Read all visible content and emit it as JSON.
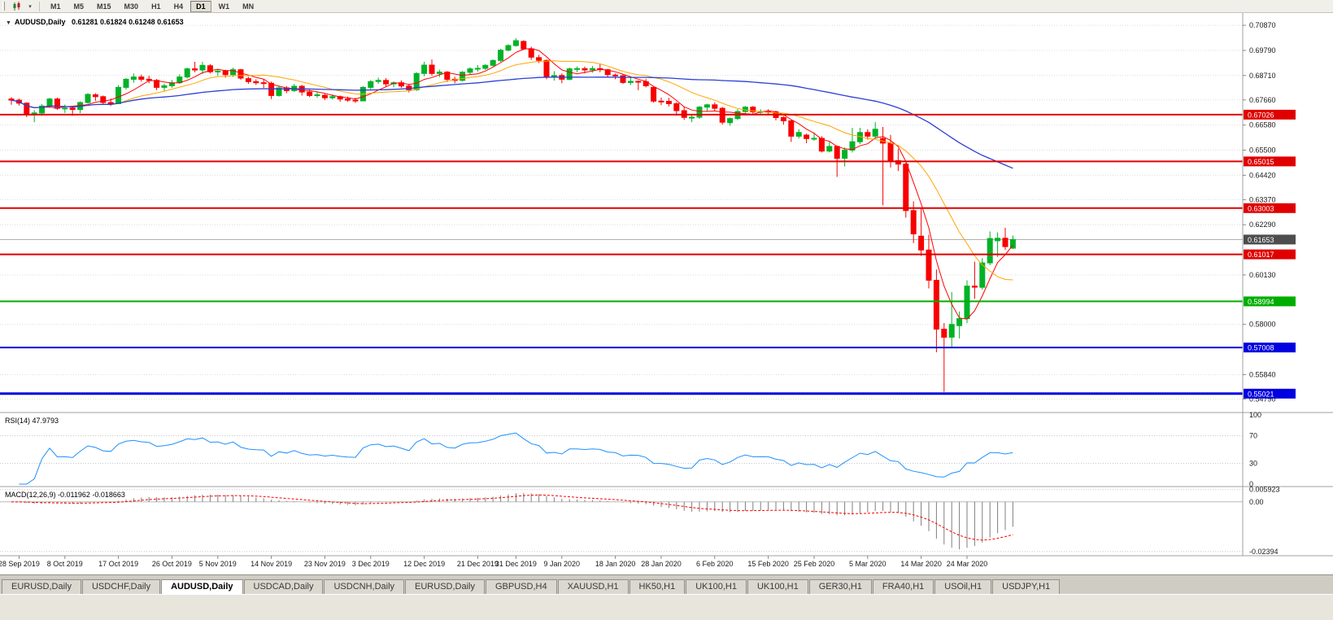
{
  "toolbar": {
    "timeframe_buttons": [
      "M1",
      "M5",
      "M15",
      "M30",
      "H1",
      "H4",
      "D1",
      "W1",
      "MN"
    ],
    "active_timeframe": "D1"
  },
  "chart_header": {
    "symbol_title": "AUDUSD,Daily",
    "ohlc_text": "0.61281 0.61824 0.61248 0.61653"
  },
  "bottom_tabs": {
    "active_index": 2,
    "tabs": [
      "EURUSD,Daily",
      "USDCHF,Daily",
      "AUDUSD,Daily",
      "USDCAD,Daily",
      "USDCNH,Daily",
      "EURUSD,Daily",
      "GBPUSD,H4",
      "XAUUSD,H1",
      "HK50,H1",
      "UK100,H1",
      "UK100,H1",
      "GER30,H1",
      "FRA40,H1",
      "USOil,H1",
      "USDJPY,H1"
    ]
  },
  "chart_data": {
    "type": "candlestick",
    "title": "AUDUSD,Daily",
    "view_range": [
      0.5428,
      0.7098
    ],
    "price_axis_labels": [
      "0.70870",
      "0.69790",
      "0.68710",
      "0.67660",
      "0.66580",
      "0.65500",
      "0.64420",
      "0.63370",
      "0.62290",
      "0.60130",
      "0.58000",
      "0.55840",
      "0.54790"
    ],
    "date_axis_labels": [
      "28 Sep 2019",
      "8 Oct 2019",
      "17 Oct 2019",
      "26 Oct 2019",
      "5 Nov 2019",
      "14 Nov 2019",
      "23 Nov 2019",
      "3 Dec 2019",
      "12 Dec 2019",
      "21 Dec 2019",
      "31 Dec 2019",
      "9 Jan 2020",
      "18 Jan 2020",
      "28 Jan 2020",
      "6 Feb 2020",
      "15 Feb 2020",
      "25 Feb 2020",
      "5 Mar 2020",
      "14 Mar 2020",
      "24 Mar 2020"
    ],
    "current_price": {
      "label": "0.61653"
    },
    "horizontal_lines": [
      {
        "price": 0.67026,
        "label": "0.67026",
        "color": "#E00000",
        "width": 2
      },
      {
        "price": 0.65015,
        "label": "0.65015",
        "color": "#E00000",
        "width": 2
      },
      {
        "price": 0.63003,
        "label": "0.63003",
        "color": "#E00000",
        "width": 2
      },
      {
        "price": 0.61017,
        "label": "0.61017",
        "color": "#E00000",
        "width": 2
      },
      {
        "price": 0.58994,
        "label": "0.58994",
        "color": "#00AE00",
        "width": 2
      },
      {
        "price": 0.57008,
        "label": "0.57008",
        "color": "#0000E0",
        "width": 2
      },
      {
        "price": 0.55021,
        "label": "0.55021",
        "color": "#0000E0",
        "width": 3
      }
    ],
    "colors": {
      "bull": "#00B226",
      "bear": "#F80000",
      "ma_fast": "#FF0000",
      "ma_mid": "#FFA500",
      "ma_slow": "#2B3FD6",
      "rsi_line": "#1E90FF",
      "macd_hist": "#7F7F7F",
      "macd_signal": "#FF0000",
      "grid": "#DCDCDC",
      "bid_line": "#A8A8A8",
      "bid_badge": "#4D4D4D"
    },
    "rsi": {
      "label": "RSI(14) 47.9793",
      "value": 47.9793,
      "levels": [
        70,
        30
      ],
      "scale_labels": [
        "100",
        "70",
        "30",
        "0"
      ]
    },
    "macd": {
      "label": "MACD(12,26,9) -0.011962 -0.018663",
      "main": -0.011962,
      "signal": -0.018663,
      "scale_labels": [
        "0.005923",
        "0.00",
        "-0.02394"
      ]
    },
    "candles": [
      [
        "2019-09-27",
        0.677,
        0.6778,
        0.6745,
        0.6765
      ],
      [
        "2019-09-30",
        0.6765,
        0.6772,
        0.6742,
        0.6752
      ],
      [
        "2019-10-01",
        0.6752,
        0.6756,
        0.6692,
        0.6705
      ],
      [
        "2019-10-02",
        0.6705,
        0.6722,
        0.667,
        0.671
      ],
      [
        "2019-10-03",
        0.671,
        0.6748,
        0.6698,
        0.674
      ],
      [
        "2019-10-04",
        0.674,
        0.6775,
        0.6732,
        0.677
      ],
      [
        "2019-10-07",
        0.677,
        0.6776,
        0.6723,
        0.673
      ],
      [
        "2019-10-08",
        0.673,
        0.6746,
        0.671,
        0.6731
      ],
      [
        "2019-10-09",
        0.6731,
        0.674,
        0.6698,
        0.6725
      ],
      [
        "2019-10-10",
        0.6725,
        0.676,
        0.6709,
        0.6755
      ],
      [
        "2019-10-11",
        0.6755,
        0.6795,
        0.675,
        0.679
      ],
      [
        "2019-10-14",
        0.6788,
        0.6795,
        0.6762,
        0.678
      ],
      [
        "2019-10-15",
        0.678,
        0.6785,
        0.6745,
        0.6755
      ],
      [
        "2019-10-16",
        0.6755,
        0.6772,
        0.674,
        0.675
      ],
      [
        "2019-10-17",
        0.675,
        0.683,
        0.6748,
        0.682
      ],
      [
        "2019-10-18",
        0.682,
        0.686,
        0.681,
        0.6855
      ],
      [
        "2019-10-21",
        0.6855,
        0.688,
        0.684,
        0.6865
      ],
      [
        "2019-10-22",
        0.6865,
        0.6875,
        0.6845,
        0.6855
      ],
      [
        "2019-10-23",
        0.6855,
        0.687,
        0.6838,
        0.685
      ],
      [
        "2019-10-24",
        0.685,
        0.6856,
        0.6808,
        0.682
      ],
      [
        "2019-10-25",
        0.682,
        0.6836,
        0.6805,
        0.6827
      ],
      [
        "2019-10-28",
        0.6827,
        0.6852,
        0.6818,
        0.684
      ],
      [
        "2019-10-29",
        0.684,
        0.6876,
        0.6835,
        0.6865
      ],
      [
        "2019-10-30",
        0.6865,
        0.6905,
        0.6858,
        0.69
      ],
      [
        "2019-10-31",
        0.69,
        0.693,
        0.6885,
        0.6895
      ],
      [
        "2019-11-01",
        0.6895,
        0.693,
        0.6878,
        0.6915
      ],
      [
        "2019-11-04",
        0.6913,
        0.692,
        0.688,
        0.6887
      ],
      [
        "2019-11-05",
        0.6887,
        0.69,
        0.687,
        0.689
      ],
      [
        "2019-11-06",
        0.689,
        0.6896,
        0.6862,
        0.6875
      ],
      [
        "2019-11-07",
        0.6875,
        0.6905,
        0.6865,
        0.6896
      ],
      [
        "2019-11-08",
        0.6896,
        0.69,
        0.6853,
        0.686
      ],
      [
        "2019-11-11",
        0.6858,
        0.6866,
        0.6835,
        0.6845
      ],
      [
        "2019-11-12",
        0.6845,
        0.6855,
        0.683,
        0.684
      ],
      [
        "2019-11-13",
        0.684,
        0.6855,
        0.6818,
        0.6838
      ],
      [
        "2019-11-14",
        0.6838,
        0.6845,
        0.677,
        0.6785
      ],
      [
        "2019-11-15",
        0.6785,
        0.6825,
        0.678,
        0.6818
      ],
      [
        "2019-11-18",
        0.6818,
        0.6826,
        0.6795,
        0.6806
      ],
      [
        "2019-11-19",
        0.6806,
        0.6835,
        0.68,
        0.6825
      ],
      [
        "2019-11-20",
        0.6825,
        0.6831,
        0.6785,
        0.68
      ],
      [
        "2019-11-21",
        0.68,
        0.681,
        0.6778,
        0.6785
      ],
      [
        "2019-11-22",
        0.6785,
        0.68,
        0.6775,
        0.6788
      ],
      [
        "2019-11-25",
        0.6786,
        0.6792,
        0.6765,
        0.6775
      ],
      [
        "2019-11-26",
        0.6775,
        0.679,
        0.6768,
        0.678
      ],
      [
        "2019-11-27",
        0.678,
        0.6785,
        0.6758,
        0.677
      ],
      [
        "2019-11-28",
        0.677,
        0.678,
        0.6758,
        0.6765
      ],
      [
        "2019-11-29",
        0.6765,
        0.6775,
        0.6753,
        0.6762
      ],
      [
        "2019-12-02",
        0.6762,
        0.6825,
        0.676,
        0.682
      ],
      [
        "2019-12-03",
        0.682,
        0.6852,
        0.681,
        0.6845
      ],
      [
        "2019-12-04",
        0.6845,
        0.6862,
        0.6835,
        0.685
      ],
      [
        "2019-12-05",
        0.685,
        0.686,
        0.6823,
        0.6835
      ],
      [
        "2019-12-06",
        0.6835,
        0.6846,
        0.682,
        0.684
      ],
      [
        "2019-12-09",
        0.684,
        0.685,
        0.6818,
        0.6826
      ],
      [
        "2019-12-10",
        0.6826,
        0.6835,
        0.6798,
        0.681
      ],
      [
        "2019-12-11",
        0.681,
        0.6885,
        0.6805,
        0.688
      ],
      [
        "2019-12-12",
        0.688,
        0.693,
        0.6868,
        0.6916
      ],
      [
        "2019-12-13",
        0.6916,
        0.694,
        0.687,
        0.688
      ],
      [
        "2019-12-16",
        0.688,
        0.6896,
        0.6865,
        0.6886
      ],
      [
        "2019-12-17",
        0.6886,
        0.689,
        0.6843,
        0.6855
      ],
      [
        "2019-12-18",
        0.6855,
        0.6866,
        0.6838,
        0.685
      ],
      [
        "2019-12-19",
        0.685,
        0.689,
        0.6845,
        0.6885
      ],
      [
        "2019-12-20",
        0.6885,
        0.6906,
        0.6875,
        0.69
      ],
      [
        "2019-12-23",
        0.69,
        0.6916,
        0.6888,
        0.6902
      ],
      [
        "2019-12-24",
        0.6902,
        0.692,
        0.6895,
        0.6915
      ],
      [
        "2019-12-26",
        0.6915,
        0.694,
        0.691,
        0.6936
      ],
      [
        "2019-12-27",
        0.6936,
        0.6986,
        0.693,
        0.698
      ],
      [
        "2019-12-30",
        0.698,
        0.7006,
        0.6975,
        0.7
      ],
      [
        "2019-12-31",
        0.7,
        0.7032,
        0.6995,
        0.7021
      ],
      [
        "2020-01-02",
        0.7018,
        0.7023,
        0.698,
        0.6986
      ],
      [
        "2020-01-03",
        0.6986,
        0.6995,
        0.6938,
        0.695
      ],
      [
        "2020-01-06",
        0.6948,
        0.696,
        0.6925,
        0.6936
      ],
      [
        "2020-01-07",
        0.6936,
        0.694,
        0.6855,
        0.6865
      ],
      [
        "2020-01-08",
        0.6865,
        0.689,
        0.6849,
        0.6871
      ],
      [
        "2020-01-09",
        0.6871,
        0.688,
        0.6838,
        0.6855
      ],
      [
        "2020-01-10",
        0.6855,
        0.6905,
        0.685,
        0.69
      ],
      [
        "2020-01-13",
        0.6898,
        0.691,
        0.6885,
        0.6901
      ],
      [
        "2020-01-14",
        0.6901,
        0.691,
        0.688,
        0.6895
      ],
      [
        "2020-01-15",
        0.6895,
        0.6912,
        0.6883,
        0.6901
      ],
      [
        "2020-01-16",
        0.6901,
        0.692,
        0.6885,
        0.6896
      ],
      [
        "2020-01-17",
        0.6896,
        0.69,
        0.6863,
        0.6875
      ],
      [
        "2020-01-20",
        0.6873,
        0.688,
        0.6855,
        0.687
      ],
      [
        "2020-01-21",
        0.687,
        0.6876,
        0.6835,
        0.6841
      ],
      [
        "2020-01-22",
        0.6841,
        0.6865,
        0.683,
        0.6846
      ],
      [
        "2020-01-23",
        0.6846,
        0.685,
        0.6808,
        0.6845
      ],
      [
        "2020-01-24",
        0.6845,
        0.6856,
        0.682,
        0.6827
      ],
      [
        "2020-01-27",
        0.682,
        0.6826,
        0.6754,
        0.6761
      ],
      [
        "2020-01-28",
        0.6761,
        0.6776,
        0.6744,
        0.676
      ],
      [
        "2020-01-29",
        0.676,
        0.6775,
        0.6738,
        0.675
      ],
      [
        "2020-01-30",
        0.675,
        0.6756,
        0.6698,
        0.672
      ],
      [
        "2020-01-31",
        0.672,
        0.6736,
        0.668,
        0.6691
      ],
      [
        "2020-02-03",
        0.6688,
        0.6701,
        0.667,
        0.6692
      ],
      [
        "2020-02-04",
        0.6692,
        0.674,
        0.6685,
        0.6735
      ],
      [
        "2020-02-05",
        0.6735,
        0.675,
        0.6718,
        0.6745
      ],
      [
        "2020-02-06",
        0.6745,
        0.6755,
        0.672,
        0.673
      ],
      [
        "2020-02-07",
        0.673,
        0.6736,
        0.666,
        0.667
      ],
      [
        "2020-02-10",
        0.6668,
        0.669,
        0.6655,
        0.6686
      ],
      [
        "2020-02-11",
        0.6686,
        0.6726,
        0.668,
        0.6716
      ],
      [
        "2020-02-12",
        0.6716,
        0.674,
        0.671,
        0.6735
      ],
      [
        "2020-02-13",
        0.6735,
        0.674,
        0.67,
        0.6715
      ],
      [
        "2020-02-14",
        0.6715,
        0.6726,
        0.67,
        0.6716
      ],
      [
        "2020-02-17",
        0.6716,
        0.6726,
        0.6705,
        0.6715
      ],
      [
        "2020-02-18",
        0.6715,
        0.672,
        0.6678,
        0.669
      ],
      [
        "2020-02-19",
        0.669,
        0.6696,
        0.666,
        0.6676
      ],
      [
        "2020-02-20",
        0.6676,
        0.668,
        0.6585,
        0.661
      ],
      [
        "2020-02-21",
        0.661,
        0.664,
        0.66,
        0.6626
      ],
      [
        "2020-02-24",
        0.6615,
        0.6621,
        0.658,
        0.66
      ],
      [
        "2020-02-25",
        0.66,
        0.6626,
        0.659,
        0.6601
      ],
      [
        "2020-02-26",
        0.6601,
        0.661,
        0.654,
        0.6546
      ],
      [
        "2020-02-27",
        0.6546,
        0.6586,
        0.654,
        0.6566
      ],
      [
        "2020-02-28",
        0.6566,
        0.657,
        0.6435,
        0.6515
      ],
      [
        "2020-03-02",
        0.6515,
        0.6562,
        0.648,
        0.655
      ],
      [
        "2020-03-03",
        0.655,
        0.6646,
        0.654,
        0.6586
      ],
      [
        "2020-03-04",
        0.6586,
        0.6646,
        0.6576,
        0.6626
      ],
      [
        "2020-03-05",
        0.6626,
        0.664,
        0.6595,
        0.661
      ],
      [
        "2020-03-06",
        0.661,
        0.667,
        0.66,
        0.664
      ],
      [
        "2020-03-09",
        0.66,
        0.665,
        0.6313,
        0.658
      ],
      [
        "2020-03-10",
        0.658,
        0.6616,
        0.6475,
        0.6505
      ],
      [
        "2020-03-11",
        0.6505,
        0.6556,
        0.646,
        0.649
      ],
      [
        "2020-03-12",
        0.649,
        0.6496,
        0.626,
        0.629
      ],
      [
        "2020-03-13",
        0.629,
        0.633,
        0.615,
        0.619
      ],
      [
        "2020-03-16",
        0.618,
        0.63,
        0.6095,
        0.612
      ],
      [
        "2020-03-17",
        0.612,
        0.6186,
        0.5955,
        0.599
      ],
      [
        "2020-03-18",
        0.599,
        0.6036,
        0.568,
        0.578
      ],
      [
        "2020-03-19",
        0.578,
        0.5806,
        0.551,
        0.5745
      ],
      [
        "2020-03-20",
        0.5745,
        0.594,
        0.57,
        0.58
      ],
      [
        "2020-03-23",
        0.5795,
        0.5856,
        0.574,
        0.5825
      ],
      [
        "2020-03-24",
        0.5825,
        0.599,
        0.5805,
        0.5965
      ],
      [
        "2020-03-25",
        0.5965,
        0.607,
        0.591,
        0.596
      ],
      [
        "2020-03-26",
        0.596,
        0.6086,
        0.595,
        0.6065
      ],
      [
        "2020-03-27",
        0.6065,
        0.62,
        0.6055,
        0.617
      ],
      [
        "2020-03-30",
        0.616,
        0.6196,
        0.609,
        0.6171
      ],
      [
        "2020-03-31",
        0.6171,
        0.6216,
        0.612,
        0.6135
      ],
      [
        "2020-04-01",
        0.61281,
        0.61824,
        0.61248,
        0.61653
      ]
    ]
  }
}
